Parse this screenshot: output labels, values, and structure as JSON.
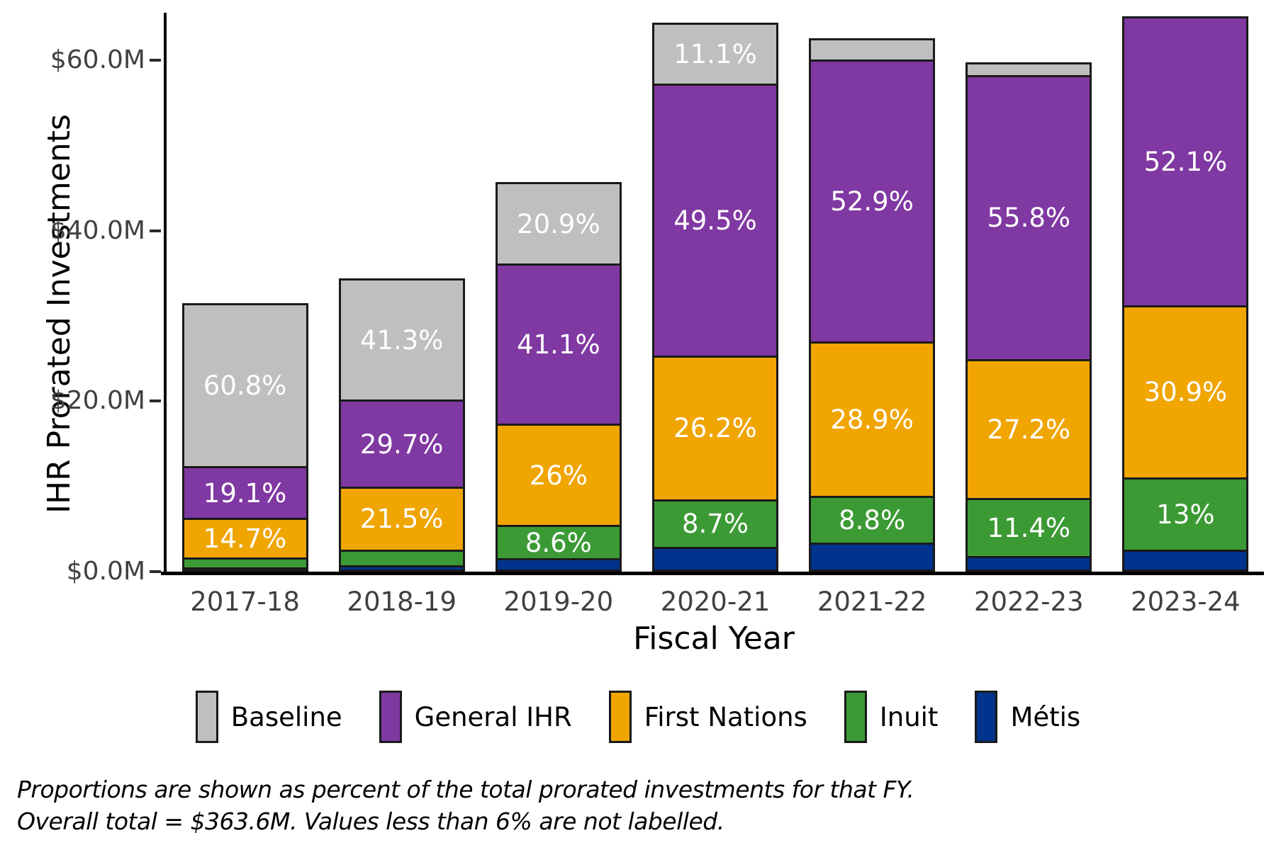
{
  "chart_data": {
    "type": "bar",
    "stacked": true,
    "title": "",
    "xlabel": "Fiscal Year",
    "ylabel": "IHR Prorated Investments",
    "ylim": [
      0,
      65.6
    ],
    "grid": false,
    "legend_position": "bottom",
    "axis_color": "#000000",
    "tick_label_color": "#404040",
    "segment_border_color": "#1A1A1A",
    "yticks": [
      {
        "value": 0,
        "label": "$0.0M"
      },
      {
        "value": 20,
        "label": "$20.0M"
      },
      {
        "value": 40,
        "label": "$40.0M"
      },
      {
        "value": 60,
        "label": "$60.0M"
      }
    ],
    "categories": [
      "2017-18",
      "2018-19",
      "2019-20",
      "2020-21",
      "2021-22",
      "2022-23",
      "2023-24"
    ],
    "totals_m": [
      31.5,
      34.4,
      45.7,
      64.4,
      62.6,
      59.8,
      65.2
    ],
    "series": [
      {
        "name": "Baseline",
        "color": "#BFBFBF",
        "values": [
          60.8,
          41.3,
          20.9,
          11.1,
          4.0,
          2.5,
          0
        ],
        "labels": [
          "60.8%",
          "41.3%",
          "20.9%",
          "11.1%",
          "",
          "",
          ""
        ]
      },
      {
        "name": "General IHR",
        "color": "#8038A2",
        "values": [
          19.1,
          29.7,
          41.1,
          49.5,
          52.9,
          55.8,
          52.1
        ],
        "labels": [
          "19.1%",
          "29.7%",
          "41.1%",
          "49.5%",
          "52.9%",
          "55.8%",
          "52.1%"
        ]
      },
      {
        "name": "First Nations",
        "color": "#F0A500",
        "values": [
          14.7,
          21.5,
          26,
          26.2,
          28.9,
          27.2,
          30.9
        ],
        "labels": [
          "14.7%",
          "21.5%",
          "26%",
          "26.2%",
          "28.9%",
          "27.2%",
          "30.9%"
        ]
      },
      {
        "name": "Inuit",
        "color": "#3C9A35",
        "values": [
          3.7,
          5.3,
          8.6,
          8.7,
          8.8,
          11.4,
          13
        ],
        "labels": [
          "",
          "",
          "8.6%",
          "8.7%",
          "8.8%",
          "11.4%",
          "13%"
        ]
      },
      {
        "name": "Métis",
        "color": "#00338D",
        "values": [
          1.7,
          2.2,
          3.4,
          4.5,
          5.4,
          3.1,
          4.0
        ],
        "labels": [
          "",
          "",
          "",
          "",
          "",
          "",
          ""
        ]
      }
    ],
    "footnote_lines": [
      "Proportions are shown as percent of the total prorated investments for that FY.",
      "Overall total = $363.6M. Values less than 6% are not labelled."
    ]
  }
}
